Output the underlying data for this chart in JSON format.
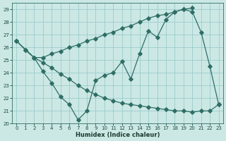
{
  "xlabel": "Humidex (Indice chaleur)",
  "background_color": "#cce8e4",
  "grid_color": "#99cccc",
  "line_color": "#2e6e66",
  "xlim": [
    -0.5,
    23.5
  ],
  "ylim": [
    20,
    29.5
  ],
  "yticks": [
    20,
    21,
    22,
    23,
    24,
    25,
    26,
    27,
    28,
    29
  ],
  "xticks": [
    0,
    1,
    2,
    3,
    4,
    5,
    6,
    7,
    8,
    9,
    10,
    11,
    12,
    13,
    14,
    15,
    16,
    17,
    18,
    19,
    20,
    21,
    22,
    23
  ],
  "line1_x": [
    0,
    2,
    3,
    4,
    5,
    6,
    7,
    8,
    9,
    10,
    11,
    12,
    13,
    14,
    15,
    16,
    17,
    18,
    19,
    20
  ],
  "line1_y": [
    26.5,
    25.2,
    25.2,
    25.5,
    25.7,
    26.0,
    26.2,
    26.5,
    26.7,
    27.0,
    27.2,
    27.5,
    27.7,
    28.0,
    28.3,
    28.5,
    28.6,
    28.8,
    29.0,
    29.1
  ],
  "line2_x": [
    0,
    1,
    2,
    3,
    4,
    5,
    6,
    7,
    8,
    9,
    10,
    11,
    12,
    13,
    14,
    15,
    16,
    17,
    18,
    19,
    20,
    21,
    22,
    23
  ],
  "line2_y": [
    26.5,
    25.8,
    25.2,
    24.1,
    23.2,
    22.1,
    21.5,
    20.3,
    21.0,
    23.4,
    23.8,
    24.0,
    24.9,
    23.5,
    25.5,
    27.3,
    26.8,
    28.2,
    28.8,
    29.0,
    28.8,
    27.2,
    24.5,
    21.5
  ],
  "line3_x": [
    1,
    2,
    3,
    4,
    5,
    6,
    7,
    8,
    9,
    10,
    11,
    12,
    13,
    14,
    15,
    16,
    17,
    18,
    19,
    20,
    21,
    22,
    23
  ],
  "line3_y": [
    25.8,
    25.2,
    24.8,
    24.4,
    23.9,
    23.5,
    23.0,
    22.6,
    22.3,
    22.0,
    21.8,
    21.6,
    21.5,
    21.4,
    21.3,
    21.2,
    21.1,
    21.0,
    21.0,
    20.9,
    21.0,
    21.0,
    21.5
  ]
}
